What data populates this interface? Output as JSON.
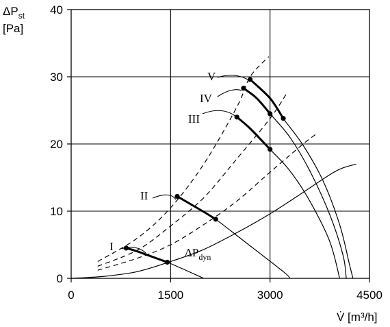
{
  "chart_data": {
    "type": "line",
    "xlabel": "V̇ [m³/h]",
    "ylabel_main": "ΔP",
    "ylabel_sub": "st",
    "ylabel_unit": "[Pa]",
    "xlim": [
      0,
      4500
    ],
    "ylim": [
      0,
      40
    ],
    "x_ticks": [
      0,
      1500,
      3000,
      4500
    ],
    "y_ticks": [
      0,
      10,
      20,
      30,
      40
    ],
    "grid_x": [
      1500,
      3000
    ],
    "grid_y": [
      10,
      20,
      30
    ],
    "fan_curves": [
      {
        "name": "I",
        "points": [
          [
            800,
            4.5
          ],
          [
            1000,
            4.0
          ],
          [
            1450,
            2.4
          ],
          [
            2000,
            0.0
          ]
        ],
        "operating_range": [
          [
            830,
            4.5
          ],
          [
            1450,
            2.4
          ]
        ]
      },
      {
        "name": "II",
        "points": [
          [
            1600,
            12.2
          ],
          [
            2000,
            9.9
          ],
          [
            2180,
            8.8
          ],
          [
            2600,
            5.6
          ],
          [
            3200,
            1.0
          ],
          [
            3300,
            0.0
          ]
        ],
        "operating_range": [
          [
            1600,
            12.2
          ],
          [
            2180,
            8.8
          ]
        ]
      },
      {
        "name": "III",
        "points": [
          [
            2500,
            24.0
          ],
          [
            2700,
            22.3
          ],
          [
            3000,
            19.2
          ],
          [
            3300,
            16.0
          ],
          [
            3600,
            11.5
          ],
          [
            3900,
            5.5
          ],
          [
            4050,
            0.0
          ]
        ],
        "operating_range": [
          [
            2500,
            24.0
          ],
          [
            3000,
            19.2
          ]
        ]
      },
      {
        "name": "IV",
        "points": [
          [
            2600,
            28.3
          ],
          [
            2800,
            26.8
          ],
          [
            3000,
            24.5
          ],
          [
            3300,
            21.0
          ],
          [
            3600,
            16.0
          ],
          [
            3900,
            9.5
          ],
          [
            4100,
            3.5
          ],
          [
            4150,
            0.0
          ]
        ],
        "operating_range": [
          [
            2600,
            28.3
          ],
          [
            3000,
            24.5
          ]
        ]
      },
      {
        "name": "V",
        "points": [
          [
            2700,
            29.6
          ],
          [
            3000,
            26.8
          ],
          [
            3200,
            23.8
          ],
          [
            3500,
            19.8
          ],
          [
            3800,
            14.5
          ],
          [
            4050,
            8.0
          ],
          [
            4200,
            2.0
          ],
          [
            4250,
            0.0
          ]
        ],
        "operating_range": [
          [
            2700,
            29.6
          ],
          [
            3200,
            23.8
          ]
        ]
      }
    ],
    "dynamic_pressure": {
      "name_main": "ΔP",
      "name_sub": "dyn",
      "points": [
        [
          0,
          0
        ],
        [
          500,
          0.3
        ],
        [
          1000,
          1.0
        ],
        [
          1500,
          2.5
        ],
        [
          2000,
          4.3
        ],
        [
          2500,
          6.8
        ],
        [
          3000,
          9.6
        ],
        [
          3500,
          12.8
        ],
        [
          4000,
          16.0
        ],
        [
          4300,
          17.0
        ]
      ]
    },
    "system_curves": [
      {
        "points": [
          [
            400,
            2.5
          ],
          [
            1000,
            6.0
          ],
          [
            1500,
            10.5
          ],
          [
            2000,
            17.0
          ],
          [
            2500,
            25.5
          ],
          [
            2700,
            30.0
          ],
          [
            2980,
            33.0
          ]
        ]
      },
      {
        "points": [
          [
            400,
            1.8
          ],
          [
            1000,
            4.2
          ],
          [
            1500,
            7.8
          ],
          [
            2000,
            12.0
          ],
          [
            2500,
            17.8
          ],
          [
            3000,
            23.8
          ],
          [
            3250,
            27.5
          ]
        ]
      },
      {
        "points": [
          [
            400,
            1.2
          ],
          [
            1000,
            3.0
          ],
          [
            1500,
            5.0
          ],
          [
            2000,
            8.0
          ],
          [
            2500,
            11.5
          ],
          [
            3000,
            15.8
          ],
          [
            3500,
            20.0
          ],
          [
            3700,
            21.5
          ]
        ]
      }
    ],
    "curve_labels": [
      "I",
      "II",
      "III",
      "IV",
      "V"
    ],
    "grid": true
  }
}
